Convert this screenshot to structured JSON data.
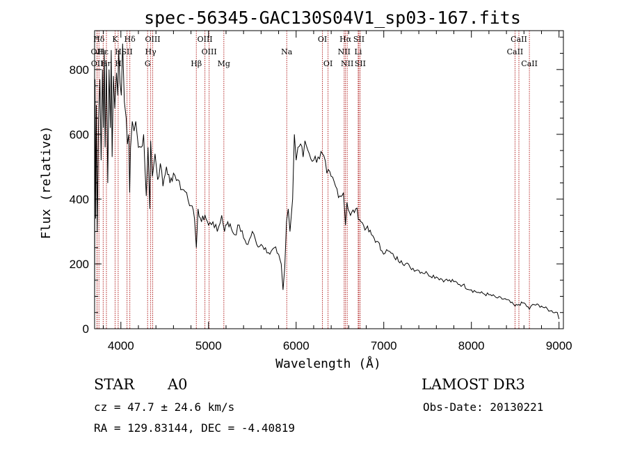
{
  "chart_data": {
    "type": "line",
    "title": "spec-56345-GAC130S04V1_sp03-167.fits",
    "xlabel": "Wavelength (Å)",
    "ylabel": "Flux (relative)",
    "xlim": [
      3700,
      9050
    ],
    "ylim": [
      0,
      920
    ],
    "xticks": [
      4000,
      5000,
      6000,
      7000,
      8000,
      9000
    ],
    "yticks": [
      0,
      200,
      400,
      600,
      800
    ],
    "grid": false,
    "series": [
      {
        "name": "flux",
        "x": [
          3700,
          3705,
          3712,
          3720,
          3730,
          3745,
          3760,
          3775,
          3790,
          3800,
          3810,
          3820,
          3835,
          3850,
          3865,
          3880,
          3890,
          3900,
          3915,
          3930,
          3950,
          3965,
          3975,
          3990,
          4005,
          4020,
          4040,
          4060,
          4075,
          4090,
          4100,
          4110,
          4130,
          4150,
          4170,
          4200,
          4230,
          4260,
          4290,
          4310,
          4330,
          4340,
          4360,
          4390,
          4420,
          4450,
          4480,
          4520,
          4560,
          4600,
          4650,
          4700,
          4750,
          4800,
          4840,
          4861,
          4880,
          4920,
          4960,
          5000,
          5050,
          5100,
          5150,
          5175,
          5183,
          5195,
          5220,
          5260,
          5300,
          5350,
          5400,
          5450,
          5500,
          5550,
          5600,
          5650,
          5700,
          5750,
          5800,
          5830,
          5850,
          5870,
          5890,
          5910,
          5930,
          5960,
          5980,
          6000,
          6020,
          6050,
          6080,
          6100,
          6150,
          6200,
          6250,
          6300,
          6350,
          6400,
          6450,
          6500,
          6540,
          6563,
          6580,
          6620,
          6680,
          6740,
          6800,
          6860,
          6920,
          6980,
          7050,
          7120,
          7200,
          7300,
          7400,
          7500,
          7600,
          7700,
          7800,
          7900,
          8000,
          8100,
          8200,
          8300,
          8400,
          8498,
          8542,
          8600,
          8662,
          8700,
          8800,
          8900,
          8980,
          9000
        ],
        "values": [
          40,
          770,
          340,
          690,
          300,
          640,
          770,
          520,
          800,
          620,
          860,
          560,
          820,
          450,
          800,
          620,
          860,
          530,
          780,
          680,
          790,
          720,
          860,
          760,
          720,
          880,
          700,
          650,
          570,
          600,
          420,
          560,
          640,
          610,
          640,
          560,
          560,
          600,
          410,
          560,
          370,
          580,
          470,
          540,
          460,
          510,
          440,
          500,
          450,
          480,
          460,
          430,
          420,
          380,
          340,
          250,
          370,
          330,
          350,
          320,
          330,
          300,
          350,
          310,
          300,
          320,
          330,
          310,
          290,
          320,
          280,
          260,
          300,
          260,
          260,
          250,
          230,
          250,
          230,
          200,
          120,
          190,
          330,
          370,
          300,
          400,
          600,
          520,
          560,
          570,
          530,
          580,
          540,
          520,
          530,
          540,
          480,
          470,
          440,
          410,
          420,
          320,
          390,
          350,
          370,
          330,
          310,
          290,
          270,
          240,
          240,
          220,
          210,
          190,
          180,
          170,
          160,
          150,
          145,
          135,
          120,
          110,
          105,
          95,
          90,
          70,
          75,
          80,
          60,
          75,
          70,
          55,
          50,
          30
        ]
      }
    ],
    "annotations": [
      {
        "label": "Hδ",
        "x": 3750,
        "row": 0
      },
      {
        "label": "OII",
        "x": 3727,
        "row": 1
      },
      {
        "label": "OII",
        "x": 3729,
        "row": 2
      },
      {
        "label": "Hε",
        "x": 3798,
        "row": 1
      },
      {
        "label": "Hη",
        "x": 3835,
        "row": 2
      },
      {
        "label": "K",
        "x": 3934,
        "row": 0
      },
      {
        "label": "H",
        "x": 3969,
        "row": 1
      },
      {
        "label": "H",
        "x": 3970,
        "row": 2
      },
      {
        "label": "Hδ",
        "x": 4102,
        "row": 0
      },
      {
        "label": "SII",
        "x": 4070,
        "row": 1
      },
      {
        "label": "OIII",
        "x": 4363,
        "row": 0
      },
      {
        "label": "Hγ",
        "x": 4340,
        "row": 1
      },
      {
        "label": "G",
        "x": 4305,
        "row": 2
      },
      {
        "label": "Hβ",
        "x": 4861,
        "row": 2
      },
      {
        "label": "OIII",
        "x": 4959,
        "row": 0
      },
      {
        "label": "OIII",
        "x": 5007,
        "row": 1
      },
      {
        "label": "Mg",
        "x": 5175,
        "row": 2
      },
      {
        "label": "Na",
        "x": 5893,
        "row": 1
      },
      {
        "label": "OI",
        "x": 6300,
        "row": 0
      },
      {
        "label": "OI",
        "x": 6364,
        "row": 2
      },
      {
        "label": "Hα",
        "x": 6563,
        "row": 0
      },
      {
        "label": "SII",
        "x": 6716,
        "row": 0
      },
      {
        "label": "NII",
        "x": 6548,
        "row": 1
      },
      {
        "label": "Li",
        "x": 6708,
        "row": 1
      },
      {
        "label": "NII",
        "x": 6583,
        "row": 2
      },
      {
        "label": "SII",
        "x": 6731,
        "row": 2
      },
      {
        "label": "CaII",
        "x": 8542,
        "row": 0
      },
      {
        "label": "CaII",
        "x": 8498,
        "row": 1
      },
      {
        "label": "CaII",
        "x": 8662,
        "row": 2
      }
    ],
    "line_color": "#000000",
    "marker_color": "#b22222"
  },
  "info": {
    "class": "STAR",
    "subclass": "A0",
    "survey": "LAMOST DR3",
    "redshift": "cz = 47.7 ± 24.6 km/s",
    "obs_date": "Obs-Date: 20130221",
    "coords": "RA = 129.83144, DEC =  -4.40819"
  }
}
